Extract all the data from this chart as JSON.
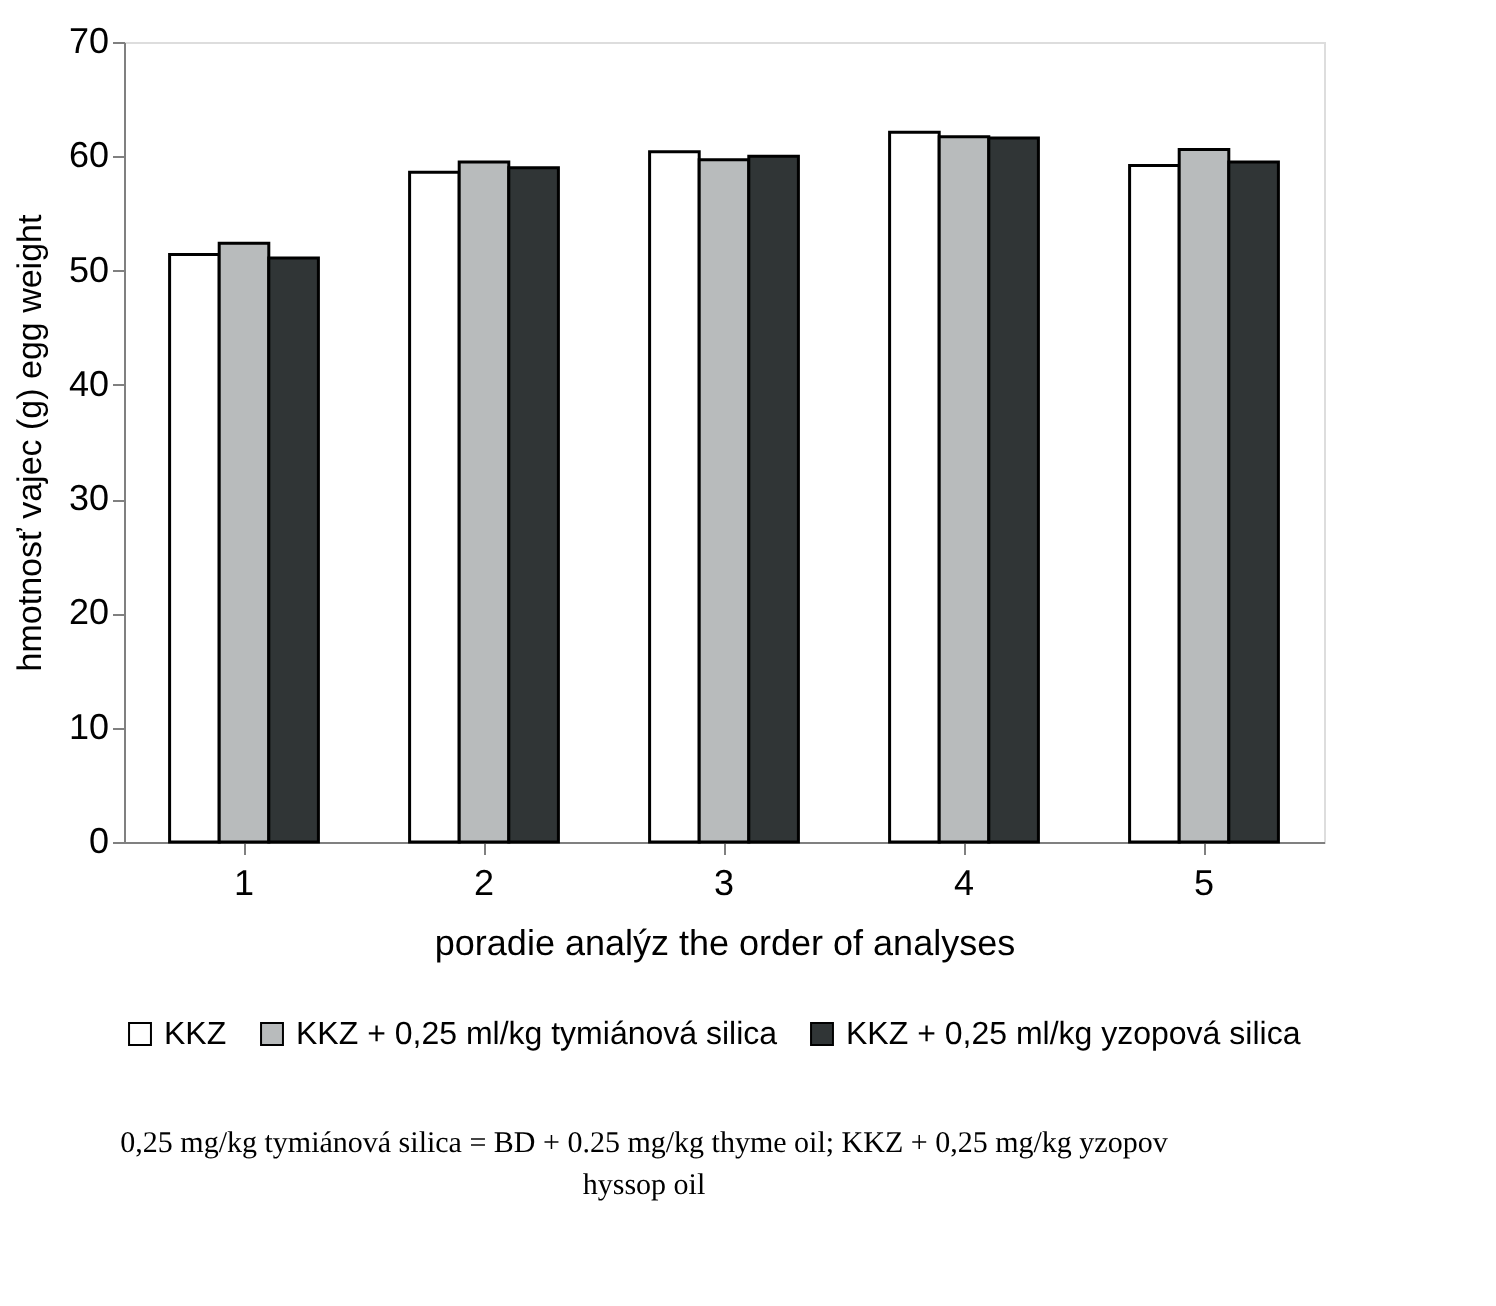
{
  "chart_data": {
    "type": "bar",
    "categories": [
      "1",
      "2",
      "3",
      "4",
      "5"
    ],
    "xlabel": "poradie analýz the order of analyses",
    "ylabel": "hmotnosť vajec (g) egg weight",
    "series": [
      {
        "name": "KKZ",
        "color": "#ffffff",
        "values": [
          51.4,
          58.6,
          60.4,
          62.1,
          59.2
        ]
      },
      {
        "name": "KKZ + 0,25 ml/kg tymiánová silica",
        "color": "#b8bbbc",
        "values": [
          52.4,
          59.5,
          59.7,
          61.7,
          60.6
        ]
      },
      {
        "name": "KKZ + 0,25 ml/kg yzopová silica",
        "color": "#303536",
        "values": [
          51.1,
          59.0,
          60.0,
          61.6,
          59.5
        ]
      }
    ],
    "ylim": [
      0,
      70
    ],
    "yticks": [
      0,
      10,
      20,
      30,
      40,
      50,
      60,
      70
    ],
    "grid": false,
    "legend": "bottom",
    "annotations": [
      "0,25 mg/kg tymiánová silica = BD + 0.25 mg/kg thyme oil; KKZ + 0,25 mg/kg yzopov",
      "hyssop oil"
    ]
  }
}
